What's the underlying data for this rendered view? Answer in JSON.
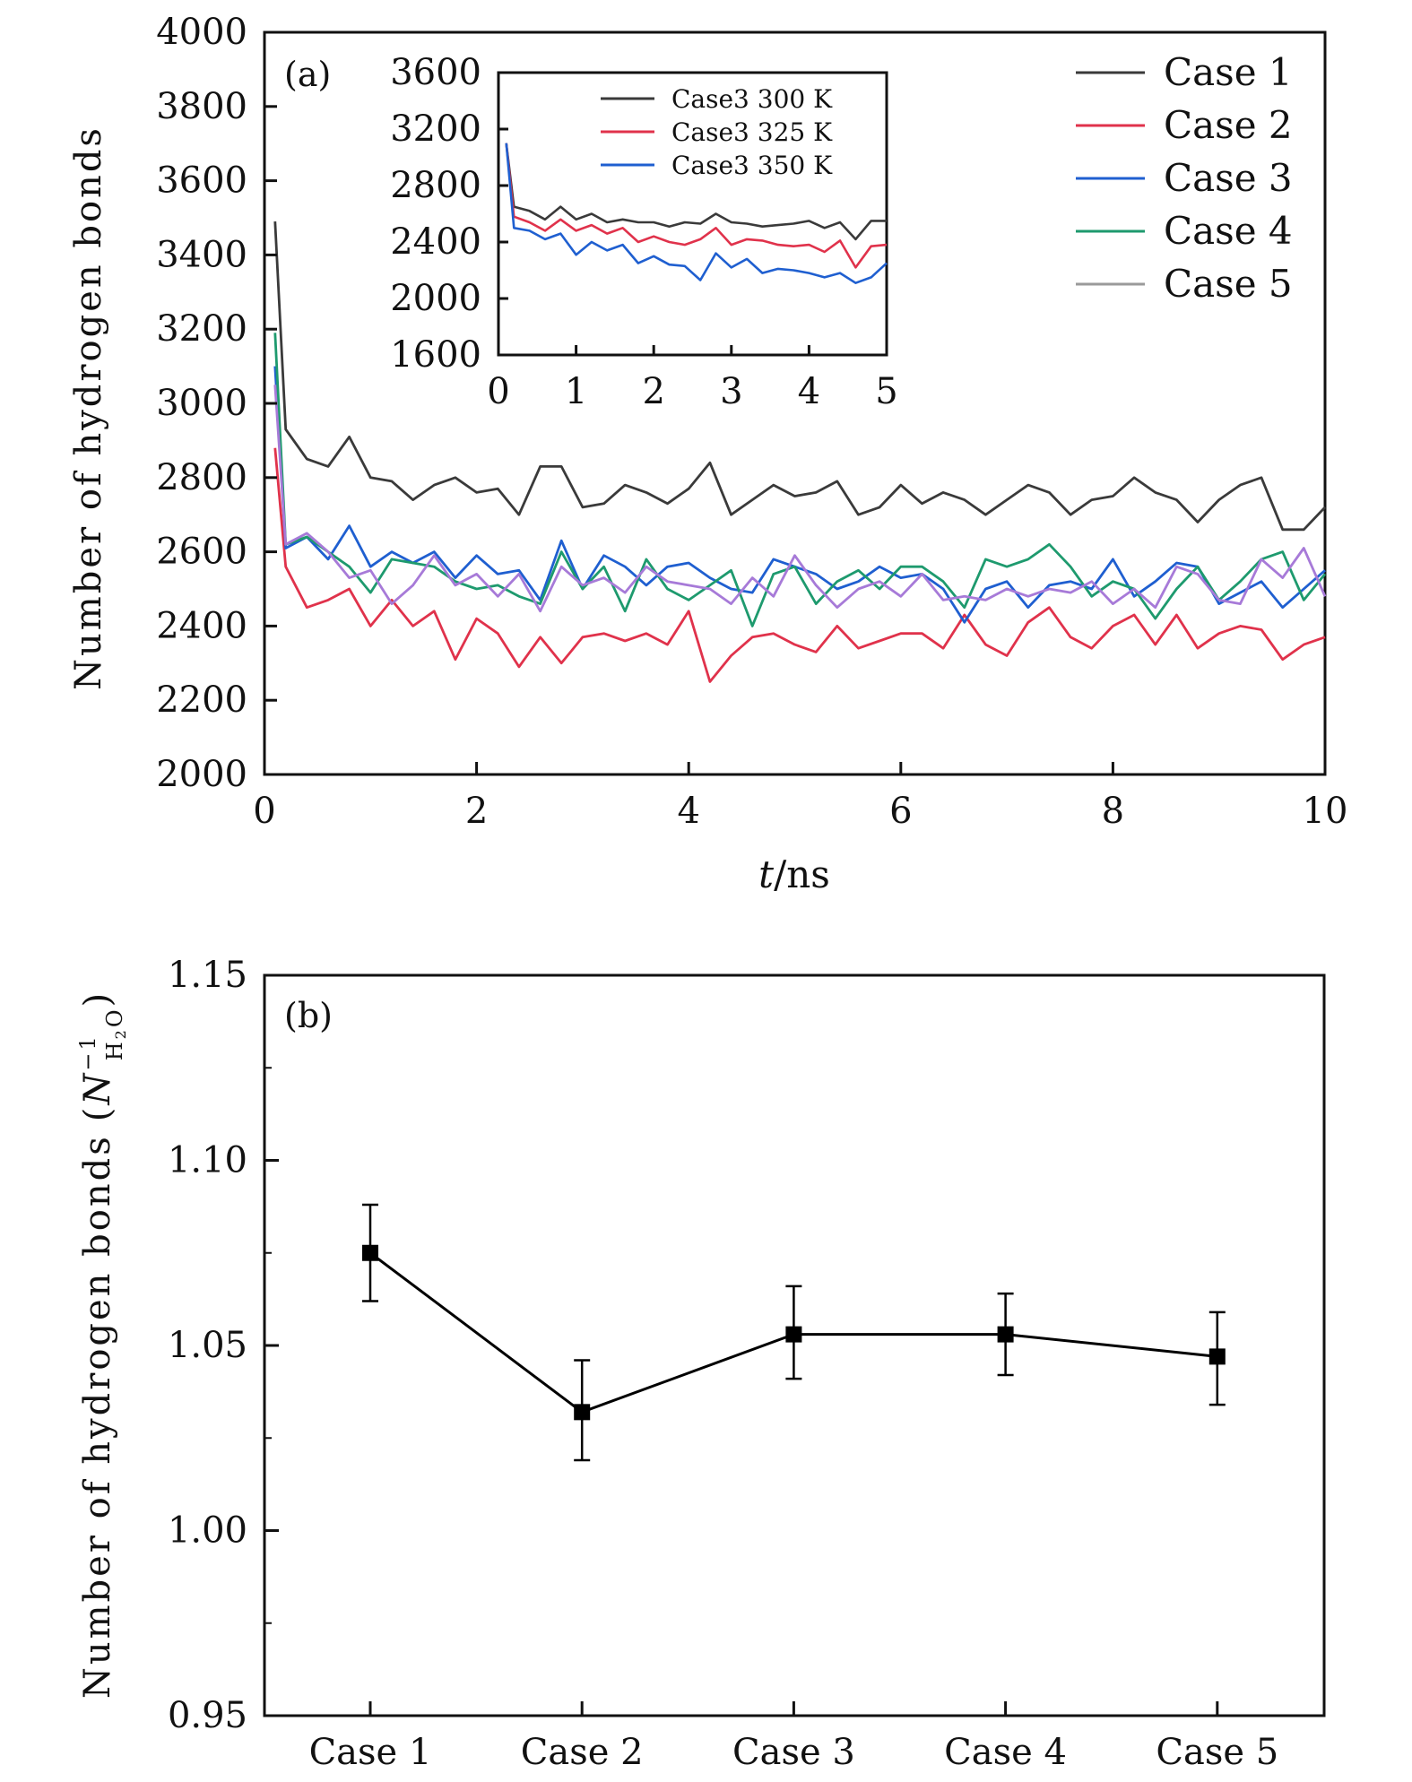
{
  "chart_data": [
    {
      "type": "line",
      "panel_label": "(a)",
      "xlabel_italic": "t",
      "xlabel_rest": "/ns",
      "ylabel": "Number of hydrogen bonds",
      "xlim": [
        0,
        10
      ],
      "ylim": [
        2000,
        4000
      ],
      "xticks": [
        0,
        2,
        4,
        6,
        8,
        10
      ],
      "yticks": [
        2000,
        2200,
        2400,
        2600,
        2800,
        3000,
        3200,
        3400,
        3600,
        3800,
        4000
      ],
      "grid": false,
      "legend_position": "top-right",
      "x": [
        0.1,
        0.2,
        0.4,
        0.6,
        0.8,
        1.0,
        1.2,
        1.4,
        1.6,
        1.8,
        2.0,
        2.2,
        2.4,
        2.6,
        2.8,
        3.0,
        3.2,
        3.4,
        3.6,
        3.8,
        4.0,
        4.2,
        4.4,
        4.6,
        4.8,
        5.0,
        5.2,
        5.4,
        5.6,
        5.8,
        6.0,
        6.2,
        6.4,
        6.6,
        6.8,
        7.0,
        7.2,
        7.4,
        7.6,
        7.8,
        8.0,
        8.2,
        8.4,
        8.6,
        8.8,
        9.0,
        9.2,
        9.4,
        9.6,
        9.8,
        10.0
      ],
      "series": [
        {
          "name": "Case 1",
          "color": "#3a3a3a",
          "values": [
            3490,
            2930,
            2850,
            2830,
            2910,
            2800,
            2790,
            2740,
            2780,
            2800,
            2760,
            2770,
            2700,
            2830,
            2830,
            2720,
            2730,
            2780,
            2760,
            2730,
            2770,
            2840,
            2700,
            2740,
            2780,
            2750,
            2760,
            2790,
            2700,
            2720,
            2780,
            2730,
            2760,
            2740,
            2700,
            2740,
            2780,
            2760,
            2700,
            2740,
            2750,
            2800,
            2760,
            2740,
            2680,
            2740,
            2780,
            2800,
            2660,
            2660,
            2720
          ]
        },
        {
          "name": "Case 2",
          "color": "#e0324b",
          "values": [
            2880,
            2560,
            2450,
            2470,
            2500,
            2400,
            2470,
            2400,
            2440,
            2310,
            2420,
            2380,
            2290,
            2370,
            2300,
            2370,
            2380,
            2360,
            2380,
            2350,
            2440,
            2250,
            2320,
            2370,
            2380,
            2350,
            2330,
            2400,
            2340,
            2360,
            2380,
            2380,
            2340,
            2430,
            2350,
            2320,
            2410,
            2450,
            2370,
            2340,
            2400,
            2430,
            2350,
            2430,
            2340,
            2380,
            2400,
            2390,
            2310,
            2350,
            2370
          ]
        },
        {
          "name": "Case 3",
          "color": "#1f5fd0",
          "values": [
            3100,
            2610,
            2640,
            2580,
            2670,
            2560,
            2600,
            2570,
            2600,
            2530,
            2590,
            2540,
            2550,
            2470,
            2630,
            2500,
            2590,
            2560,
            2510,
            2560,
            2570,
            2530,
            2500,
            2490,
            2580,
            2560,
            2540,
            2500,
            2520,
            2560,
            2530,
            2540,
            2500,
            2410,
            2500,
            2520,
            2450,
            2510,
            2520,
            2500,
            2580,
            2480,
            2520,
            2570,
            2560,
            2460,
            2490,
            2520,
            2450,
            2500,
            2550
          ]
        },
        {
          "name": "Case 4",
          "color": "#1e9a6e",
          "values": [
            3190,
            2620,
            2640,
            2600,
            2560,
            2490,
            2580,
            2570,
            2560,
            2520,
            2500,
            2510,
            2480,
            2460,
            2600,
            2500,
            2560,
            2440,
            2580,
            2500,
            2470,
            2510,
            2550,
            2400,
            2540,
            2560,
            2460,
            2520,
            2550,
            2500,
            2560,
            2560,
            2520,
            2450,
            2580,
            2560,
            2580,
            2620,
            2560,
            2480,
            2520,
            2500,
            2420,
            2500,
            2560,
            2470,
            2520,
            2580,
            2600,
            2470,
            2540
          ]
        },
        {
          "name": "Case 5",
          "color": "#a77ad8",
          "values": [
            3050,
            2620,
            2650,
            2600,
            2530,
            2550,
            2460,
            2510,
            2590,
            2510,
            2540,
            2480,
            2540,
            2440,
            2560,
            2510,
            2530,
            2490,
            2560,
            2520,
            2510,
            2500,
            2460,
            2530,
            2480,
            2590,
            2510,
            2450,
            2500,
            2520,
            2480,
            2540,
            2470,
            2480,
            2470,
            2500,
            2480,
            2500,
            2490,
            2520,
            2460,
            2500,
            2450,
            2560,
            2540,
            2470,
            2460,
            2580,
            2530,
            2610,
            2480
          ]
        }
      ],
      "legend_line_color_case5": "#9a9a9a",
      "inset": {
        "type": "line",
        "xlim": [
          0,
          5
        ],
        "ylim": [
          1600,
          3600
        ],
        "xticks": [
          0,
          1,
          2,
          3,
          4,
          5
        ],
        "yticks": [
          1600,
          2000,
          2400,
          2800,
          3200,
          3600
        ],
        "legend_position": "top-right",
        "x": [
          0.1,
          0.2,
          0.4,
          0.6,
          0.8,
          1.0,
          1.2,
          1.4,
          1.6,
          1.8,
          2.0,
          2.2,
          2.4,
          2.6,
          2.8,
          3.0,
          3.2,
          3.4,
          3.6,
          3.8,
          4.0,
          4.2,
          4.4,
          4.6,
          4.8,
          5.0
        ],
        "series": [
          {
            "name": "Case3 300 K",
            "color": "#3a3a3a",
            "values": [
              3100,
              2650,
              2620,
              2560,
              2650,
              2560,
              2600,
              2540,
              2560,
              2540,
              2540,
              2510,
              2540,
              2530,
              2600,
              2540,
              2530,
              2510,
              2520,
              2530,
              2550,
              2500,
              2540,
              2420,
              2550,
              2550
            ]
          },
          {
            "name": "Case3 325 K",
            "color": "#e0324b",
            "values": [
              3100,
              2580,
              2540,
              2480,
              2560,
              2480,
              2520,
              2460,
              2500,
              2400,
              2440,
              2400,
              2380,
              2420,
              2500,
              2380,
              2420,
              2410,
              2380,
              2370,
              2380,
              2330,
              2410,
              2220,
              2370,
              2380
            ]
          },
          {
            "name": "Case3 350 K",
            "color": "#1f5fd0",
            "values": [
              3100,
              2500,
              2480,
              2420,
              2460,
              2310,
              2400,
              2340,
              2380,
              2250,
              2300,
              2240,
              2230,
              2130,
              2320,
              2220,
              2280,
              2180,
              2210,
              2200,
              2180,
              2150,
              2180,
              2110,
              2150,
              2250
            ]
          }
        ]
      }
    },
    {
      "type": "line",
      "panel_label": "(b)",
      "ylabel": "Number of hydrogen bonds",
      "ylabel_unit_base": "N",
      "ylabel_unit_sup": "−1",
      "ylabel_unit_sub": "H",
      "ylabel_unit_sub2": "2",
      "ylabel_unit_sub3": "O",
      "categories": [
        "Case 1",
        "Case 2",
        "Case 3",
        "Case 4",
        "Case 5"
      ],
      "values": [
        1.075,
        1.032,
        1.053,
        1.053,
        1.047
      ],
      "error_upper": [
        1.088,
        1.046,
        1.066,
        1.064,
        1.059
      ],
      "error_lower": [
        1.062,
        1.019,
        1.041,
        1.042,
        1.034
      ],
      "ylim": [
        0.95,
        1.15
      ],
      "yticks": [
        0.95,
        1.0,
        1.05,
        1.1,
        1.15
      ],
      "ytick_labels": [
        "0.95",
        "1.00",
        "1.05",
        "1.10",
        "1.15"
      ],
      "marker": "square",
      "color": "#000000",
      "grid": false
    }
  ]
}
